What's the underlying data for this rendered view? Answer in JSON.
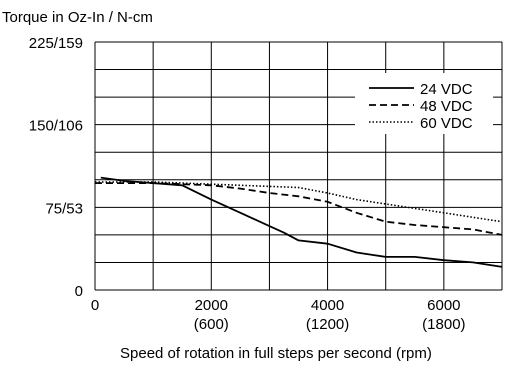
{
  "chart_data": {
    "type": "line",
    "title": "Torque in Oz-In / N-cm",
    "xlabel": "Speed of rotation in full steps per second (rpm)",
    "xlim": [
      0,
      7000
    ],
    "ylim": [
      0,
      225
    ],
    "grid": true,
    "legend_position": "top-right",
    "x_ticks": [
      {
        "value": 0,
        "label": "0",
        "sublabel": ""
      },
      {
        "value": 2000,
        "label": "2000",
        "sublabel": "(600)"
      },
      {
        "value": 4000,
        "label": "4000",
        "sublabel": "(1200)"
      },
      {
        "value": 6000,
        "label": "6000",
        "sublabel": "(1800)"
      }
    ],
    "y_ticks": [
      {
        "value": 0,
        "label": "0"
      },
      {
        "value": 75,
        "label": "75/53"
      },
      {
        "value": 150,
        "label": "150/106"
      },
      {
        "value": 225,
        "label": "225/159"
      }
    ],
    "series": [
      {
        "name": "24 VDC",
        "style": "solid",
        "x": [
          100,
          500,
          1000,
          1500,
          2000,
          2500,
          3000,
          3250,
          3500,
          4000,
          4500,
          5000,
          5500,
          6000,
          6500,
          7000
        ],
        "y": [
          102,
          99,
          97,
          95,
          82,
          70,
          58,
          52,
          45,
          42,
          34,
          30,
          30,
          27,
          25,
          21
        ]
      },
      {
        "name": "48 VDC",
        "style": "dashed",
        "x": [
          0,
          500,
          1000,
          1500,
          2000,
          2500,
          3000,
          3500,
          4000,
          4500,
          5000,
          5500,
          6000,
          6500,
          7000
        ],
        "y": [
          97,
          97,
          97,
          96,
          95,
          92,
          88,
          85,
          80,
          70,
          62,
          59,
          57,
          55,
          50
        ]
      },
      {
        "name": "60 VDC",
        "style": "dotted",
        "x": [
          0,
          500,
          1000,
          1500,
          2000,
          2500,
          3000,
          3500,
          4000,
          4500,
          5000,
          5500,
          6000,
          6500,
          7000
        ],
        "y": [
          98,
          98,
          98,
          97,
          96,
          95,
          94,
          93,
          88,
          82,
          78,
          74,
          70,
          66,
          62
        ]
      }
    ]
  }
}
